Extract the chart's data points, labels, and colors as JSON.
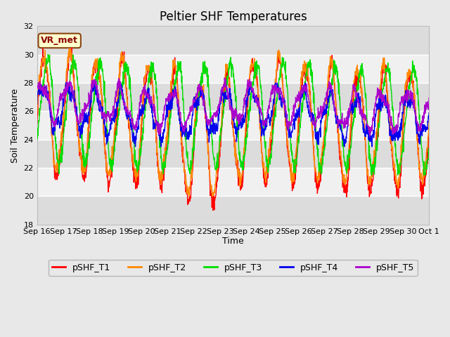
{
  "title": "Peltier SHF Temperatures",
  "xlabel": "Time",
  "ylabel": "Soil Temperature",
  "ylim": [
    18,
    32
  ],
  "yticks": [
    18,
    20,
    22,
    24,
    26,
    28,
    30,
    32
  ],
  "annotation_text": "VR_met",
  "series_colors": {
    "pSHF_T1": "#ff0000",
    "pSHF_T2": "#ff8800",
    "pSHF_T3": "#00dd00",
    "pSHF_T4": "#0000ee",
    "pSHF_T5": "#aa00cc"
  },
  "fig_bg_color": "#e8e8e8",
  "plot_bg_color": "#f0f0f0",
  "band_colors": [
    "#dcdcdc",
    "#f0f0f0"
  ],
  "grid_color": "#ffffff",
  "xtick_labels": [
    "Sep 16",
    "Sep 17",
    "Sep 18",
    "Sep 19",
    "Sep 20",
    "Sep 21",
    "Sep 22",
    "Sep 23",
    "Sep 24",
    "Sep 25",
    "Sep 26",
    "Sep 27",
    "Sep 28",
    "Sep 29",
    "Sep 30",
    "Oct 1"
  ],
  "title_fontsize": 12,
  "label_fontsize": 9,
  "tick_fontsize": 8,
  "legend_fontsize": 9
}
